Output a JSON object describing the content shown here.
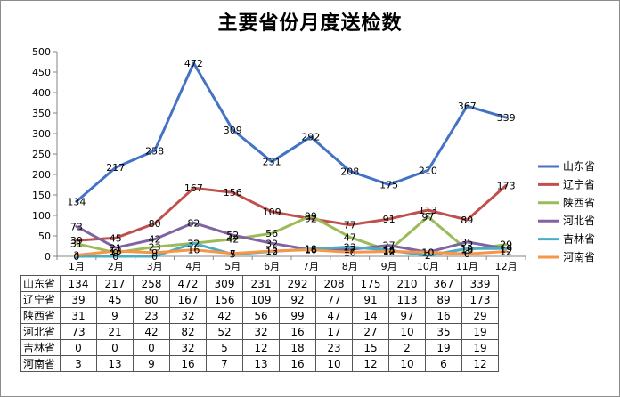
{
  "chart_data": {
    "type": "line",
    "title": "主要省份月度送检数",
    "categories": [
      "1月",
      "2月",
      "3月",
      "4月",
      "5月",
      "6月",
      "7月",
      "8月",
      "9月",
      "10月",
      "11月",
      "12月"
    ],
    "ylim": [
      0,
      500
    ],
    "yticks": [
      0,
      50,
      100,
      150,
      200,
      250,
      300,
      350,
      400,
      450,
      500
    ],
    "grid": false,
    "legend": "right",
    "series": [
      {
        "name": "山东省",
        "color": "#4472c4",
        "values": [
          134,
          217,
          258,
          472,
          309,
          231,
          292,
          208,
          175,
          210,
          367,
          339
        ]
      },
      {
        "name": "辽宁省",
        "color": "#c0504d",
        "values": [
          39,
          45,
          80,
          167,
          156,
          109,
          92,
          77,
          91,
          113,
          89,
          173
        ]
      },
      {
        "name": "陕西省",
        "color": "#9bbb59",
        "values": [
          31,
          9,
          23,
          32,
          42,
          56,
          99,
          47,
          14,
          97,
          16,
          29
        ]
      },
      {
        "name": "河北省",
        "color": "#8064a2",
        "values": [
          73,
          21,
          42,
          82,
          52,
          32,
          16,
          17,
          27,
          10,
          35,
          19
        ]
      },
      {
        "name": "吉林省",
        "color": "#4bacc6",
        "values": [
          0,
          0,
          0,
          32,
          5,
          12,
          18,
          23,
          15,
          2,
          19,
          19
        ]
      },
      {
        "name": "河南省",
        "color": "#f79646",
        "values": [
          3,
          13,
          9,
          16,
          7,
          13,
          16,
          10,
          12,
          10,
          6,
          12
        ]
      }
    ]
  }
}
